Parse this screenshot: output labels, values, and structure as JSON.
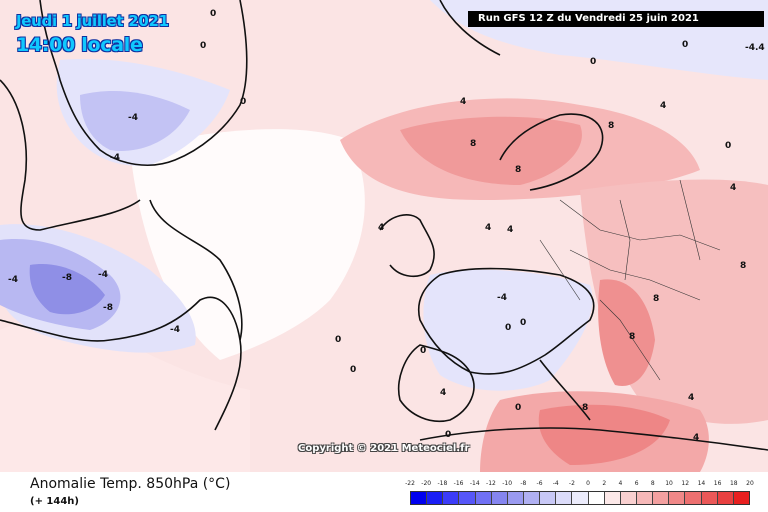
{
  "header": {
    "date": "Jeudi 1 juillet 2021",
    "time": "14:00 locale",
    "run": "Run GFS 12 Z du Vendredi 25 juin 2021"
  },
  "copyright": "Copyright © 2021 Meteociel.fr",
  "footer": {
    "parameter": "Anomalie Temp. 850hPa (°C)",
    "lead_time": "(+ 144h)"
  },
  "colors": {
    "neutral": "#fdeeee",
    "cold_light": "#e6e6fb",
    "cold_mid": "#b9b9f3",
    "cold_strong": "#8f8fe6",
    "warm_light": "#f9d1d1",
    "warm_mid": "#f4a5a5",
    "warm_strong": "#ee8a8a"
  },
  "scale": {
    "ticks": [
      "-22",
      "-20",
      "-18",
      "-16",
      "-14",
      "-12",
      "-10",
      "-8",
      "-6",
      "-4",
      "-2",
      "0",
      "2",
      "4",
      "6",
      "8",
      "10",
      "12",
      "14",
      "16",
      "18",
      "20"
    ],
    "colors": [
      "#0000ee",
      "#1a1ef5",
      "#3c3cf8",
      "#5656f8",
      "#7070f4",
      "#8585f0",
      "#9a9af0",
      "#b0b0f2",
      "#c8c8f6",
      "#dcdcfa",
      "#ececfc",
      "#ffffff",
      "#fce8e8",
      "#f9d0d0",
      "#f6b8b8",
      "#f3a0a0",
      "#f08888",
      "#ed7070",
      "#ea5858",
      "#e84040",
      "#e82020"
    ]
  },
  "contour_labels": [
    {
      "v": "0"
    },
    {
      "v": "0"
    },
    {
      "v": "0"
    },
    {
      "v": "0"
    },
    {
      "v": "4"
    },
    {
      "v": "-4"
    },
    {
      "v": "-4"
    },
    {
      "v": "-8"
    },
    {
      "v": "-8"
    },
    {
      "v": "-4"
    },
    {
      "v": "-4"
    },
    {
      "v": "-4"
    },
    {
      "v": "4"
    },
    {
      "v": "8"
    },
    {
      "v": "8"
    },
    {
      "v": "8"
    },
    {
      "v": "4"
    },
    {
      "v": "4"
    },
    {
      "v": "-4"
    },
    {
      "v": "0"
    },
    {
      "v": "0"
    },
    {
      "v": "8"
    },
    {
      "v": "8"
    },
    {
      "v": "8"
    },
    {
      "v": "8"
    },
    {
      "v": "4"
    },
    {
      "v": "4"
    },
    {
      "v": "-4.4"
    },
    {
      "v": "0"
    },
    {
      "v": "0"
    },
    {
      "v": "0"
    },
    {
      "v": "0"
    },
    {
      "v": "4"
    },
    {
      "v": "0"
    },
    {
      "v": "0"
    },
    {
      "v": "0"
    },
    {
      "v": "4"
    },
    {
      "v": "4"
    }
  ]
}
